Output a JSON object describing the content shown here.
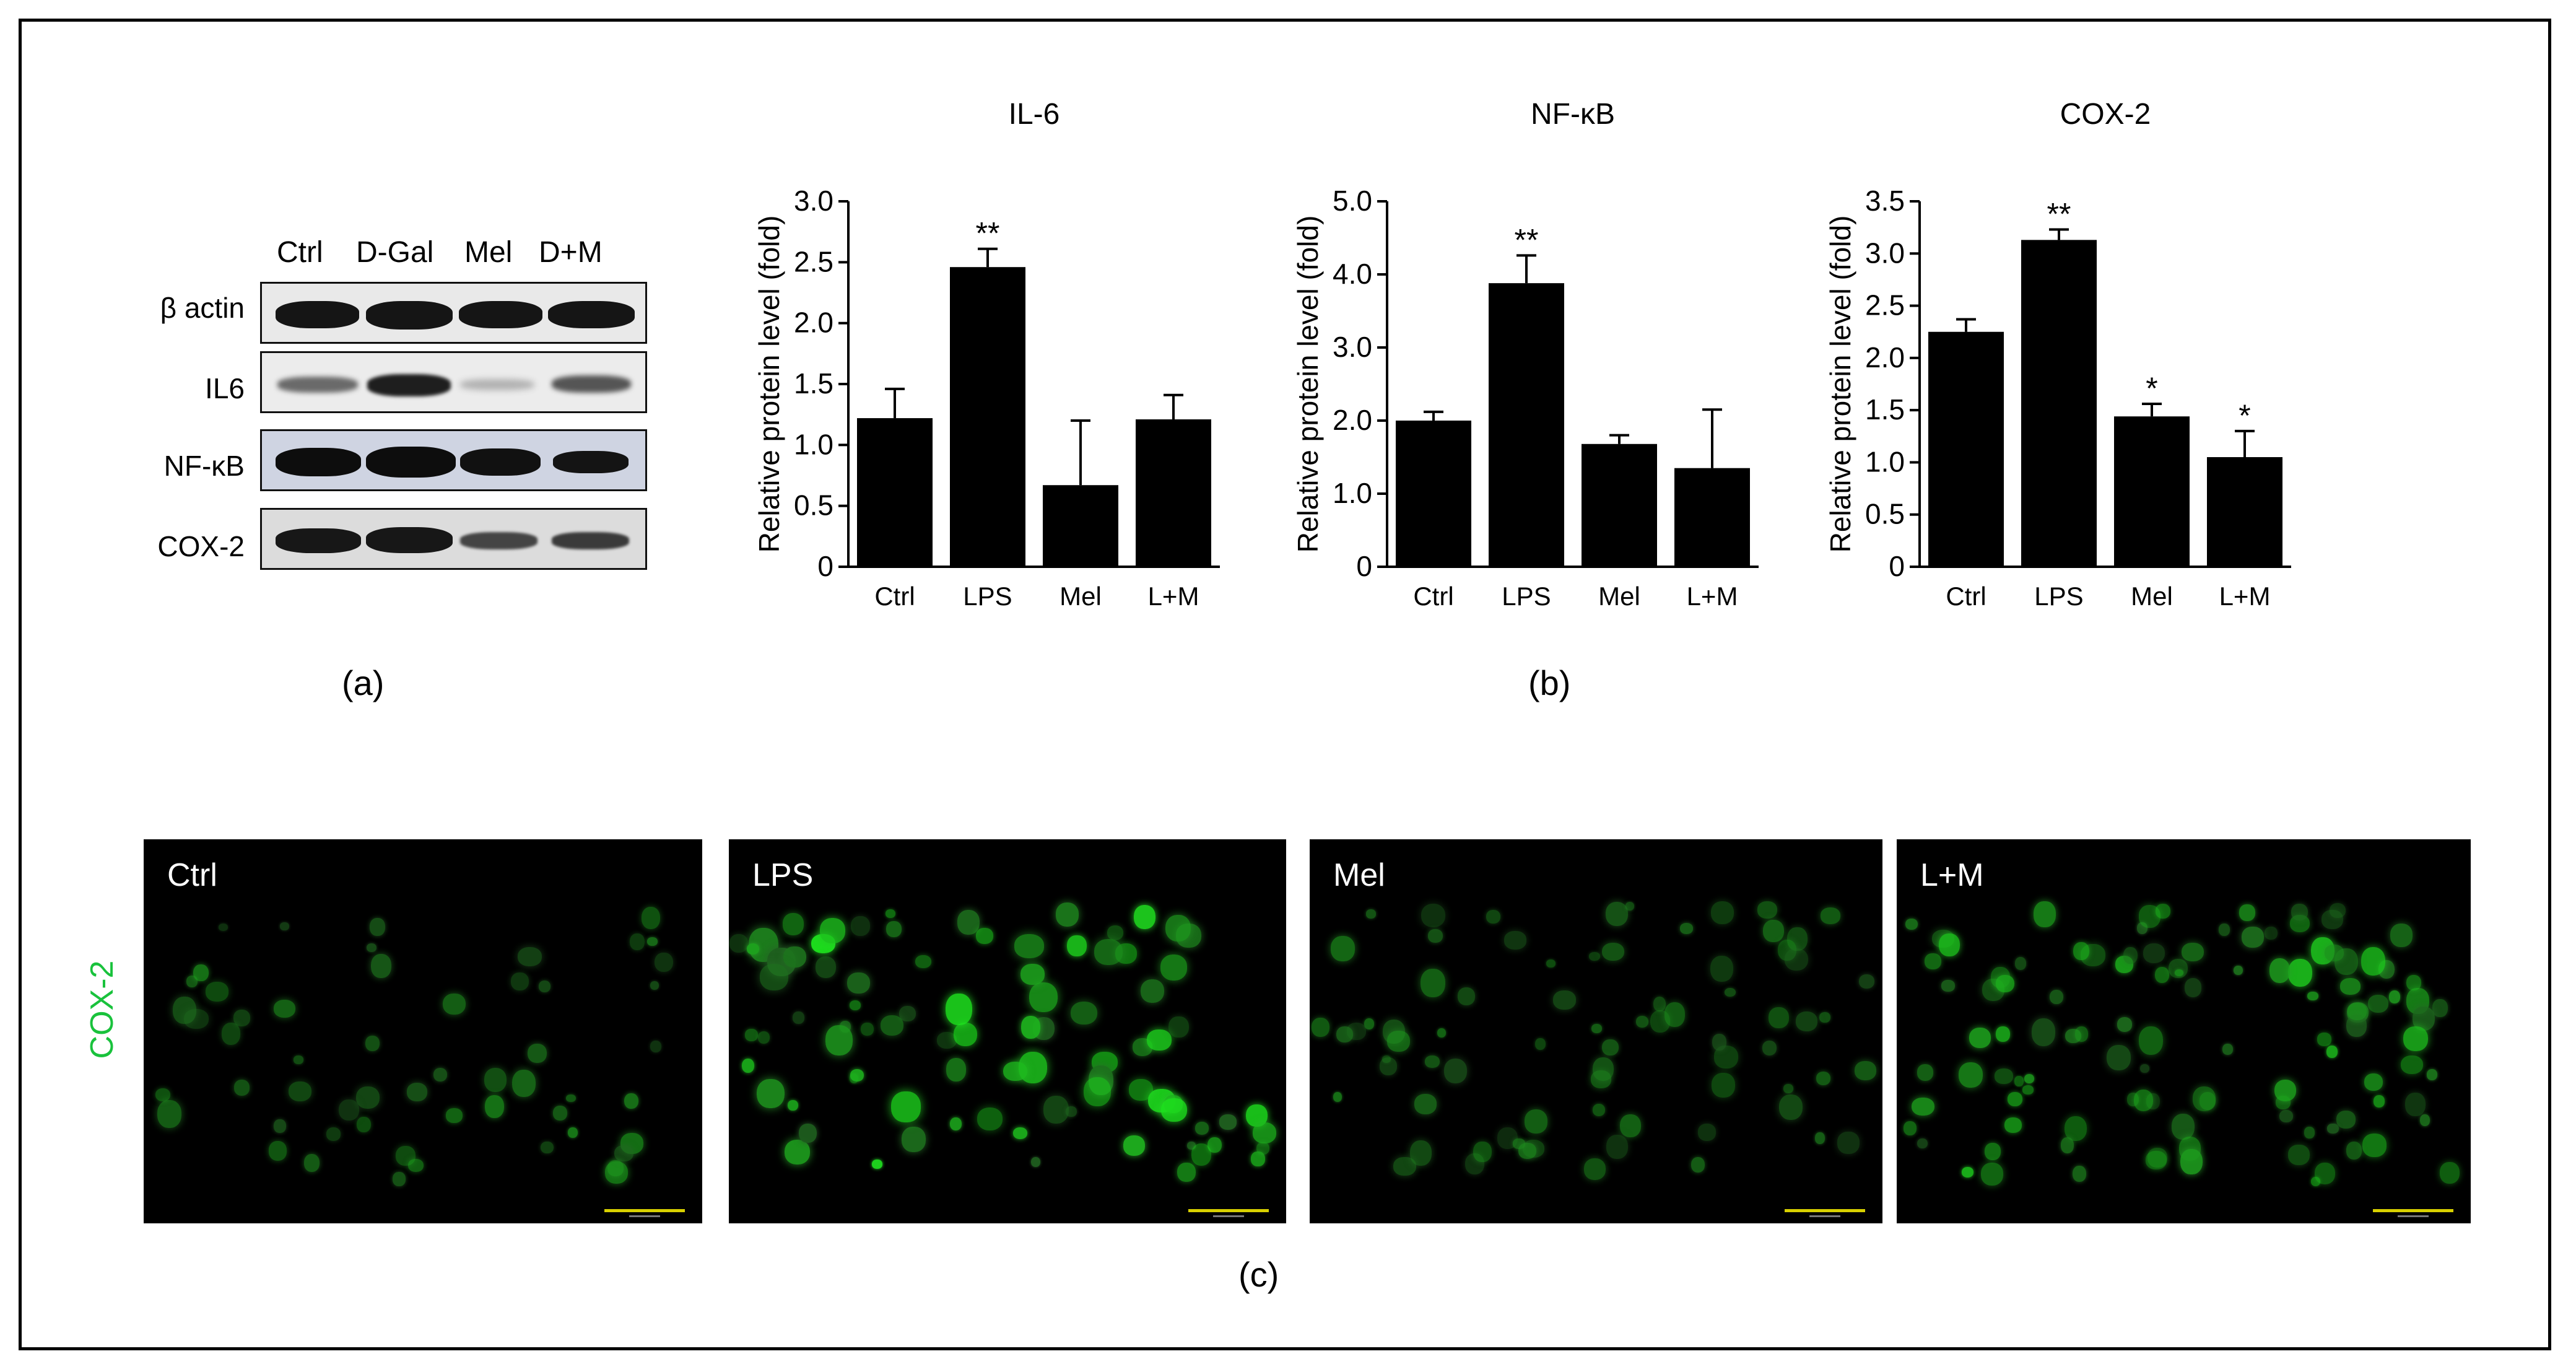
{
  "western_blot": {
    "lanes": [
      "Ctrl",
      "D-Gal",
      "Mel",
      "D+M"
    ],
    "rows": [
      "β actin",
      "IL6",
      "NF-κB",
      "COX-2"
    ]
  },
  "panel_labels": {
    "a": "(a)",
    "b": "(b)",
    "c": "(c)"
  },
  "chart_data": [
    {
      "type": "bar",
      "title": "IL-6",
      "ylabel": "Relative protein level (fold)",
      "categories": [
        "Ctrl",
        "LPS",
        "Mel",
        "L+M"
      ],
      "values": [
        1.22,
        2.46,
        0.67,
        1.21
      ],
      "errors": [
        0.24,
        0.15,
        0.53,
        0.2
      ],
      "annotations": [
        "",
        "**",
        "",
        ""
      ],
      "ylim": [
        0,
        3.0
      ],
      "yticks": [
        "0",
        "0.5",
        "1.0",
        "1.5",
        "2.0",
        "2.5",
        "3.0"
      ],
      "bar_color": "#000000"
    },
    {
      "type": "bar",
      "title": "NF-κB",
      "ylabel": "Relative protein level (fold)",
      "categories": [
        "Ctrl",
        "LPS",
        "Mel",
        "L+M"
      ],
      "values": [
        2.0,
        3.88,
        1.68,
        1.35
      ],
      "errors": [
        0.12,
        0.38,
        0.12,
        0.8
      ],
      "annotations": [
        "",
        "**",
        "",
        ""
      ],
      "ylim": [
        0,
        5.0
      ],
      "yticks": [
        "0",
        "1.0",
        "2.0",
        "3.0",
        "4.0",
        "5.0"
      ],
      "bar_color": "#000000"
    },
    {
      "type": "bar",
      "title": "COX-2",
      "ylabel": "Relative protein level (fold)",
      "categories": [
        "Ctrl",
        "LPS",
        "Mel",
        "L+M"
      ],
      "values": [
        2.25,
        3.13,
        1.44,
        1.05
      ],
      "errors": [
        0.12,
        0.1,
        0.12,
        0.25
      ],
      "annotations": [
        "",
        "**",
        "*",
        "*"
      ],
      "ylim": [
        0,
        3.5
      ],
      "yticks": [
        "0",
        "0.5",
        "1.0",
        "1.5",
        "2.0",
        "2.5",
        "3.0",
        "3.5"
      ],
      "bar_color": "#000000"
    }
  ],
  "micrographs": {
    "stain_label": "COX-2",
    "stain_color": "#19c23c",
    "panels": [
      "Ctrl",
      "LPS",
      "Mel",
      "L+M"
    ],
    "relative_intensity": [
      0.55,
      1.0,
      0.5,
      0.85
    ]
  }
}
